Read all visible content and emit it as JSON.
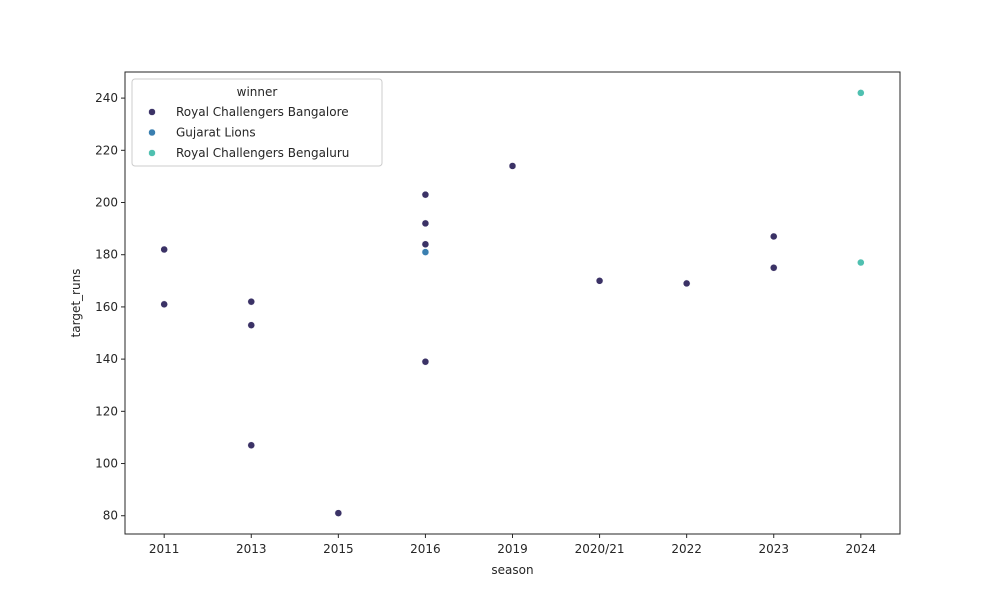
{
  "chart_data": {
    "type": "scatter",
    "xlabel": "season",
    "ylabel": "target_runs",
    "categories": [
      "2011",
      "2013",
      "2015",
      "2016",
      "2019",
      "2020/21",
      "2022",
      "2023",
      "2024"
    ],
    "ylim": [
      73,
      250
    ],
    "yticks": [
      80,
      100,
      120,
      140,
      160,
      180,
      200,
      220,
      240
    ],
    "legend": {
      "title": "winner",
      "placement": "top-left"
    },
    "series": [
      {
        "name": "Royal Challengers Bangalore",
        "color": "#3b3266",
        "points": [
          {
            "x": "2011",
            "y": 182
          },
          {
            "x": "2011",
            "y": 161
          },
          {
            "x": "2013",
            "y": 162
          },
          {
            "x": "2013",
            "y": 153
          },
          {
            "x": "2013",
            "y": 107
          },
          {
            "x": "2015",
            "y": 81
          },
          {
            "x": "2016",
            "y": 203
          },
          {
            "x": "2016",
            "y": 192
          },
          {
            "x": "2016",
            "y": 184
          },
          {
            "x": "2016",
            "y": 139
          },
          {
            "x": "2019",
            "y": 214
          },
          {
            "x": "2020/21",
            "y": 170
          },
          {
            "x": "2022",
            "y": 169
          },
          {
            "x": "2023",
            "y": 187
          },
          {
            "x": "2023",
            "y": 175
          }
        ]
      },
      {
        "name": "Gujarat Lions",
        "color": "#3a7fb0",
        "points": [
          {
            "x": "2016",
            "y": 181
          }
        ]
      },
      {
        "name": "Royal Challengers Bengaluru",
        "color": "#4fc0b0",
        "points": [
          {
            "x": "2024",
            "y": 242
          },
          {
            "x": "2024",
            "y": 177
          }
        ]
      }
    ]
  }
}
